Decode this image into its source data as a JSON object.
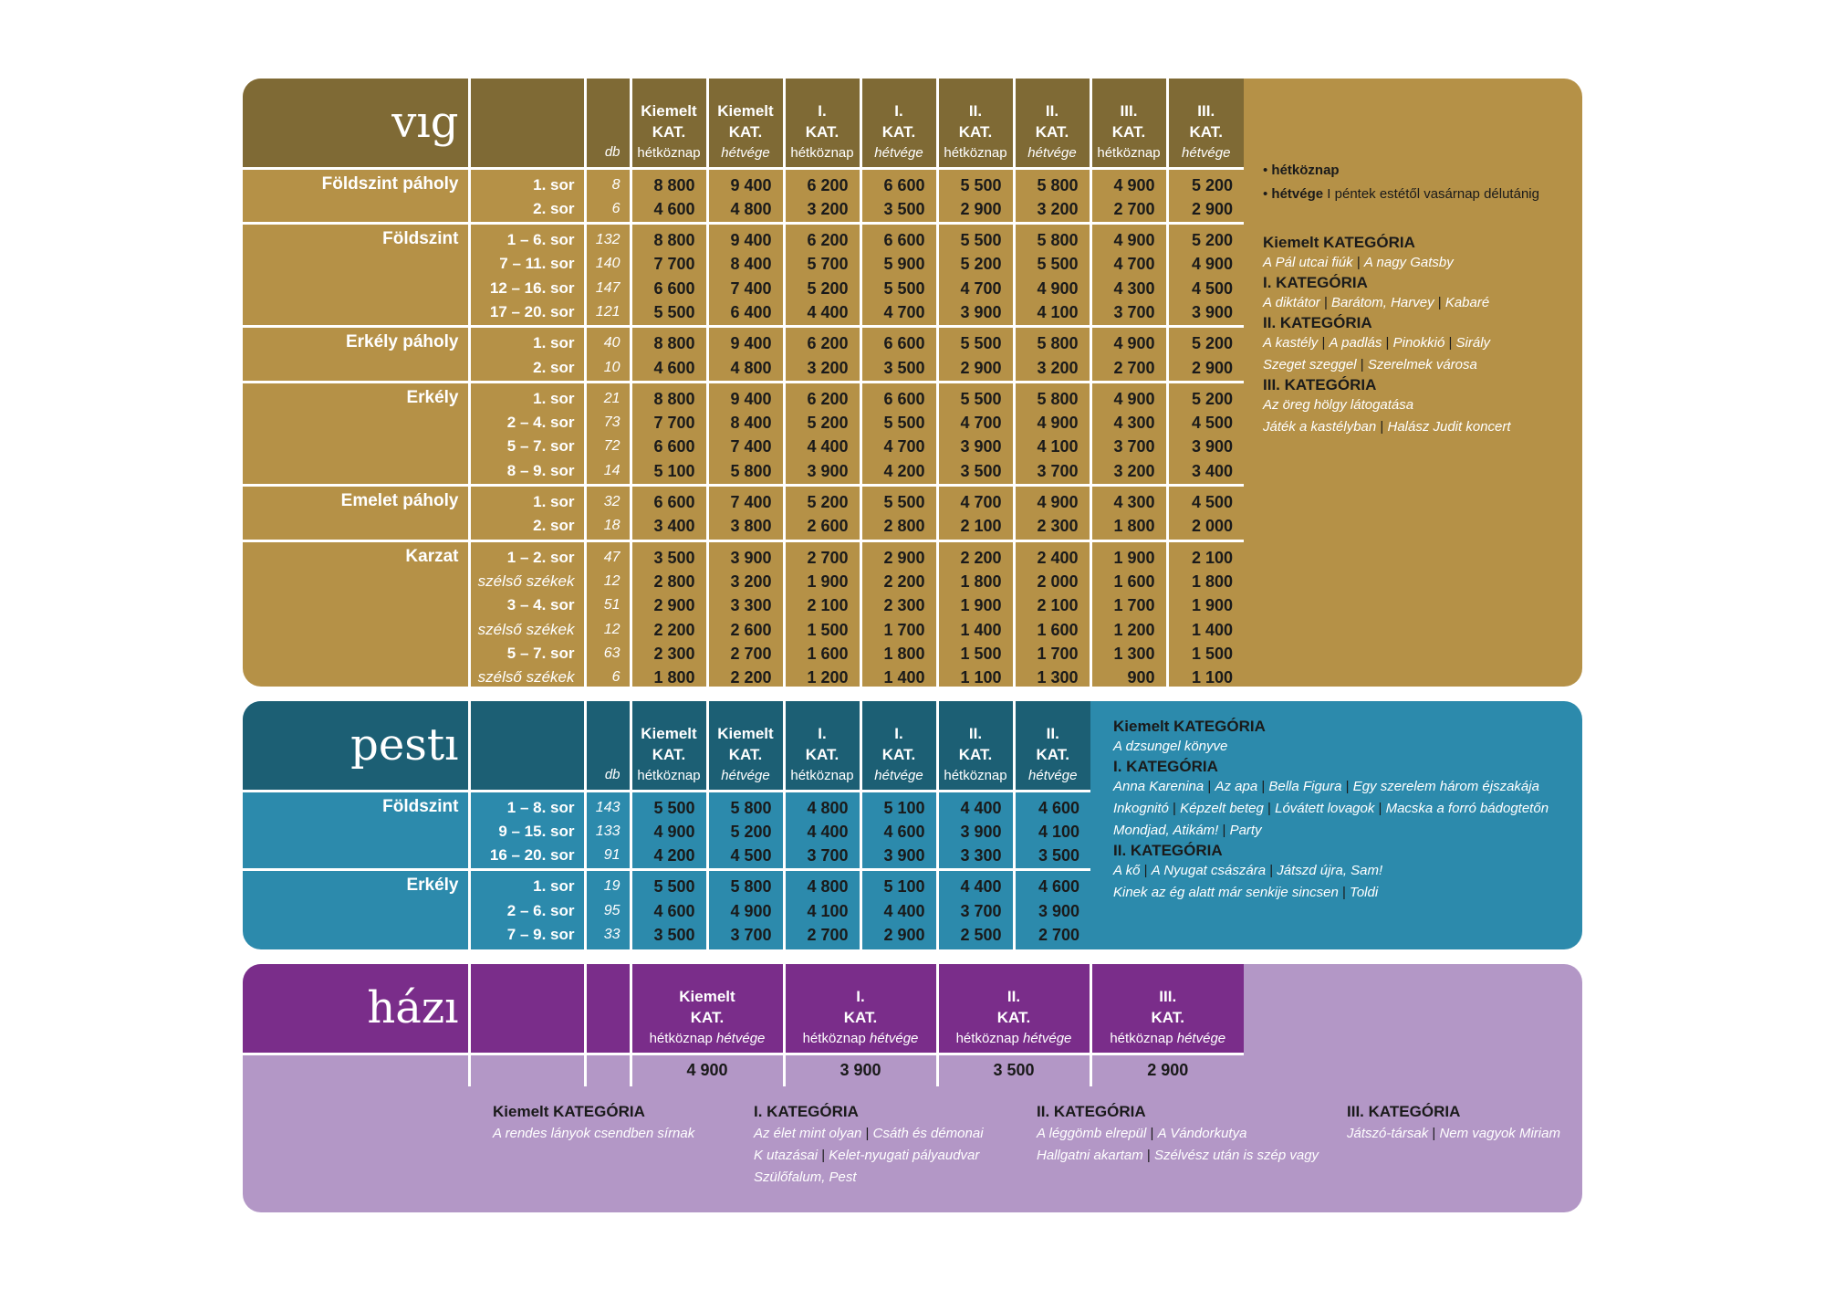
{
  "labels": {
    "db": "db",
    "kat_kiemelt": "Kiemelt",
    "kat_i": "I.",
    "kat_ii": "II.",
    "kat_iii": "III.",
    "kat": "KAT.",
    "hetkoznap": "hétköznap",
    "hetvege": "hétvége"
  },
  "vig": {
    "logo": "vıg",
    "sections": [
      {
        "name": "Földszint páholy",
        "rows": [
          "1. sor",
          "2. sor"
        ],
        "counts": [
          "8",
          "6"
        ],
        "prices": [
          [
            "8 800",
            "9 400",
            "6 200",
            "6 600",
            "5 500",
            "5 800",
            "4 900",
            "5 200"
          ],
          [
            "4 600",
            "4 800",
            "3 200",
            "3 500",
            "2 900",
            "3 200",
            "2 700",
            "2 900"
          ]
        ]
      },
      {
        "name": "Földszint",
        "rows": [
          "1 – 6. sor",
          "7 – 11. sor",
          "12 – 16. sor",
          "17 – 20. sor"
        ],
        "counts": [
          "132",
          "140",
          "147",
          "121"
        ],
        "prices": [
          [
            "8 800",
            "9 400",
            "6 200",
            "6 600",
            "5 500",
            "5 800",
            "4 900",
            "5 200"
          ],
          [
            "7 700",
            "8 400",
            "5 700",
            "5 900",
            "5 200",
            "5 500",
            "4 700",
            "4 900"
          ],
          [
            "6 600",
            "7 400",
            "5 200",
            "5 500",
            "4 700",
            "4 900",
            "4 300",
            "4 500"
          ],
          [
            "5 500",
            "6 400",
            "4 400",
            "4 700",
            "3 900",
            "4 100",
            "3 700",
            "3 900"
          ]
        ]
      },
      {
        "name": "Erkély páholy",
        "rows": [
          "1. sor",
          "2. sor"
        ],
        "counts": [
          "40",
          "10"
        ],
        "prices": [
          [
            "8 800",
            "9 400",
            "6 200",
            "6 600",
            "5 500",
            "5 800",
            "4 900",
            "5 200"
          ],
          [
            "4 600",
            "4 800",
            "3 200",
            "3 500",
            "2 900",
            "3 200",
            "2 700",
            "2 900"
          ]
        ]
      },
      {
        "name": "Erkély",
        "rows": [
          "1. sor",
          "2 – 4. sor",
          "5 – 7. sor",
          "8 – 9. sor"
        ],
        "counts": [
          "21",
          "73",
          "72",
          "14"
        ],
        "prices": [
          [
            "8 800",
            "9 400",
            "6 200",
            "6 600",
            "5 500",
            "5 800",
            "4 900",
            "5 200"
          ],
          [
            "7 700",
            "8 400",
            "5 200",
            "5 500",
            "4 700",
            "4 900",
            "4 300",
            "4 500"
          ],
          [
            "6 600",
            "7 400",
            "4 400",
            "4 700",
            "3 900",
            "4 100",
            "3 700",
            "3 900"
          ],
          [
            "5 100",
            "5 800",
            "3 900",
            "4 200",
            "3 500",
            "3 700",
            "3 200",
            "3 400"
          ]
        ]
      },
      {
        "name": "Emelet páholy",
        "rows": [
          "1. sor",
          "2. sor"
        ],
        "counts": [
          "32",
          "18"
        ],
        "prices": [
          [
            "6 600",
            "7 400",
            "5 200",
            "5 500",
            "4 700",
            "4 900",
            "4 300",
            "4 500"
          ],
          [
            "3 400",
            "3 800",
            "2 600",
            "2 800",
            "2 100",
            "2 300",
            "1 800",
            "2 000"
          ]
        ]
      },
      {
        "name": "Karzat",
        "rows": [
          "1 – 2. sor",
          "szélső székek",
          "3 – 4. sor",
          "szélső székek",
          "5 – 7. sor",
          "szélső székek"
        ],
        "counts": [
          "47",
          "12",
          "51",
          "12",
          "63",
          "6"
        ],
        "prices": [
          [
            "3 500",
            "3 900",
            "2 700",
            "2 900",
            "2 200",
            "2 400",
            "1 900",
            "2 100"
          ],
          [
            "2 800",
            "3 200",
            "1 900",
            "2 200",
            "1 800",
            "2 000",
            "1 600",
            "1 800"
          ],
          [
            "2 900",
            "3 300",
            "2 100",
            "2 300",
            "1 900",
            "2 100",
            "1 700",
            "1 900"
          ],
          [
            "2 200",
            "2 600",
            "1 500",
            "1 700",
            "1 400",
            "1 600",
            "1 200",
            "1 400"
          ],
          [
            "2 300",
            "2 700",
            "1 600",
            "1 800",
            "1 500",
            "1 700",
            "1 300",
            "1 500"
          ],
          [
            "1 800",
            "2 200",
            "1 200",
            "1 400",
            "1 100",
            "1 300",
            "900",
            "1 100"
          ]
        ]
      }
    ],
    "legend": {
      "weekday": "hétköznap",
      "weekend": "hétvége",
      "weekend_note": "I péntek estétől vasárnap délutánig"
    },
    "categories": [
      {
        "title": "Kiemelt KATEGÓRIA",
        "lines": [
          [
            "A Pál utcai fiúk",
            "A nagy Gatsby"
          ]
        ]
      },
      {
        "title": "I. KATEGÓRIA",
        "lines": [
          [
            "A diktátor",
            "Barátom, Harvey",
            "Kabaré"
          ]
        ]
      },
      {
        "title": "II. KATEGÓRIA",
        "lines": [
          [
            "A kastély",
            "A padlás",
            "Pinokkió",
            "Sirály"
          ],
          [
            "Szeget szeggel",
            "Szerelmek városa"
          ]
        ]
      },
      {
        "title": "III. KATEGÓRIA",
        "lines": [
          [
            "Az öreg hölgy látogatása"
          ],
          [
            "Játék a kastélyban",
            "Halász Judit koncert"
          ]
        ]
      }
    ]
  },
  "pesti": {
    "logo": "pestı",
    "sections": [
      {
        "name": "Földszint",
        "rows": [
          "1 – 8. sor",
          "9 – 15. sor",
          "16 – 20. sor"
        ],
        "counts": [
          "143",
          "133",
          "91"
        ],
        "prices": [
          [
            "5 500",
            "5 800",
            "4 800",
            "5 100",
            "4 400",
            "4 600"
          ],
          [
            "4 900",
            "5 200",
            "4 400",
            "4 600",
            "3 900",
            "4 100"
          ],
          [
            "4 200",
            "4 500",
            "3 700",
            "3 900",
            "3 300",
            "3 500"
          ]
        ]
      },
      {
        "name": "Erkély",
        "rows": [
          "1. sor",
          "2 – 6. sor",
          "7 – 9. sor"
        ],
        "counts": [
          "19",
          "95",
          "33"
        ],
        "prices": [
          [
            "5 500",
            "5 800",
            "4 800",
            "5 100",
            "4 400",
            "4 600"
          ],
          [
            "4 600",
            "4 900",
            "4 100",
            "4 400",
            "3 700",
            "3 900"
          ],
          [
            "3 500",
            "3 700",
            "2 700",
            "2 900",
            "2 500",
            "2 700"
          ]
        ]
      }
    ],
    "categories": [
      {
        "title": "Kiemelt KATEGÓRIA",
        "lines": [
          [
            "A dzsungel könyve"
          ]
        ]
      },
      {
        "title": "I. KATEGÓRIA",
        "lines": [
          [
            "Anna Karenina",
            "Az apa",
            "Bella Figura",
            "Egy szerelem három éjszakája"
          ],
          [
            "Inkognitó",
            "Képzelt beteg",
            "Lóvátett lovagok",
            "Macska a forró bádogtetőn"
          ],
          [
            "Mondjad, Atikám!",
            "Party"
          ]
        ]
      },
      {
        "title": "II. KATEGÓRIA",
        "lines": [
          [
            "A kő",
            "A Nyugat császára",
            "Játszd újra, Sam!"
          ],
          [
            "Kinek az ég alatt már senkije sincsen",
            "Toldi"
          ]
        ]
      }
    ]
  },
  "hazi": {
    "logo": "házı",
    "prices": [
      "4 900",
      "3 900",
      "3 500",
      "2 900"
    ],
    "categories": [
      {
        "title": "Kiemelt KATEGÓRIA",
        "lines": [
          [
            "A rendes lányok csendben sírnak"
          ]
        ]
      },
      {
        "title": "I. KATEGÓRIA",
        "lines": [
          [
            "Az élet mint olyan",
            "Csáth és démonai"
          ],
          [
            "K utazásai",
            "Kelet-nyugati pályaudvar"
          ],
          [
            "Szülőfalum, Pest"
          ]
        ]
      },
      {
        "title": "II. KATEGÓRIA",
        "lines": [
          [
            "A léggömb elrepül",
            "A Vándorkutya"
          ],
          [
            "Hallgatni akartam",
            "Szélvész után is szép vagy"
          ]
        ]
      },
      {
        "title": "III. KATEGÓRIA",
        "lines": [
          [
            "Játszó-társak",
            "Nem vagyok Miriam"
          ]
        ]
      }
    ]
  }
}
